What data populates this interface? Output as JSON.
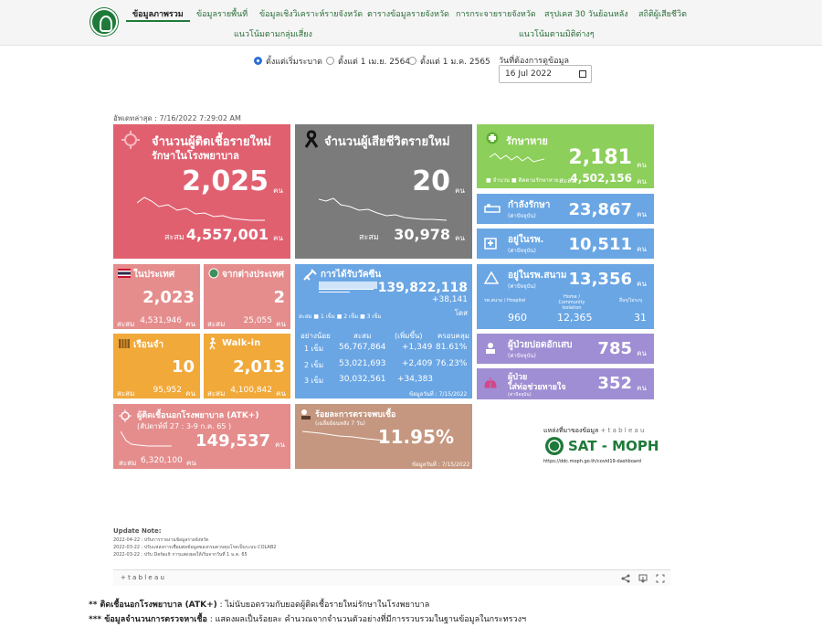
{
  "nav": {
    "items": [
      "ข้อมูลภาพรวม",
      "ข้อมูลรายพื้นที่",
      "ข้อมูลเชิงวิเคราะห์รายจังหวัด",
      "ตารางข้อมูลรายจังหวัด",
      "การกระจายรายจังหวัด",
      "สรุปเคส 30 วันย้อนหลัง",
      "สถิติผู้เสียชีวิต"
    ],
    "row2": [
      "แนวโน้มตามกลุ่มเสี่ยง",
      "แนวโน้มตามมิติต่างๆ"
    ]
  },
  "filters": {
    "opt1": "ตั้งแต่เริ่มระบาด",
    "opt2": "ตั้งแต่ 1 เม.ย. 2564",
    "opt3": "ตั้งแต่ 1 ม.ค. 2565",
    "date_label": "วันที่ต้องการดูข้อมูล",
    "date_value": "16 Jul 2022"
  },
  "updated": "อัพเดทล่าสุด : 7/16/2022 7:29:02 AM",
  "new_cases": {
    "title1": "จำนวนผู้ติดเชื้อรายใหม่",
    "title2": "รักษาในโรงพยาบาล",
    "value": "2,025",
    "unit": "คน",
    "cum_label": "สะสม",
    "cum": "4,557,001",
    "cum_unit": "คน"
  },
  "deaths": {
    "title": "จำนวนผู้เสียชีวิตรายใหม่",
    "value": "20",
    "unit": "คน",
    "cum_label": "สะสม",
    "cum": "30,978",
    "cum_unit": "คน"
  },
  "recovered": {
    "title": "รักษาหาย",
    "value": "2,181",
    "unit": "คน",
    "legend1": "จำนวน",
    "legend2": "ติดตามรักษาหาย",
    "cum_label": "สะสม",
    "cum": "4,502,156",
    "cum_unit": "คน"
  },
  "treating": {
    "title": "กำลังรักษา",
    "sub": "(ค่าปัจจุบัน)",
    "value": "23,867",
    "unit": "คน"
  },
  "in_hosp": {
    "title": "อยู่ในรพ.",
    "sub": "(ค่าปัจจุบัน)",
    "value": "10,511",
    "unit": "คน"
  },
  "field_hosp": {
    "title": "อยู่ในรพ.สนาม",
    "sub": "(ค่าปัจจุบัน)",
    "value": "13,356",
    "unit": "คน",
    "c1": "รพ.สนาม / Hospitel",
    "c2": "Home / Community Isolation",
    "c3": "อื่นๆ/ไม่ระบุ",
    "v1": "960",
    "v2": "12,365",
    "v3": "31"
  },
  "lung": {
    "title": "ผู้ป่วยปอดอักเสบ",
    "sub": "(ค่าปัจจุบัน)",
    "value": "785",
    "unit": "คน"
  },
  "ventilator": {
    "title1": "ผู้ป่วย",
    "title2": "ใส่ท่อช่วยหายใจ",
    "sub": "(ค่าปัจจุบัน)",
    "value": "352",
    "unit": "คน"
  },
  "domestic": {
    "title": "ในประเทศ",
    "value": "2,023",
    "cum_label": "สะสม",
    "cum": "4,531,946",
    "unit": "คน"
  },
  "abroad": {
    "title": "จากต่างประเทศ",
    "value": "2",
    "cum_label": "สะสม",
    "cum": "25,055",
    "unit": "คน"
  },
  "prison": {
    "title": "เรือนจำ",
    "value": "10",
    "cum_label": "สะสม",
    "cum": "95,952",
    "unit": "คน"
  },
  "walkin": {
    "title": "Walk-in",
    "value": "2,013",
    "cum_label": "สะสม",
    "cum": "4,100,842",
    "unit": "คน"
  },
  "vaccine": {
    "title": "การได้รับวัคซีน",
    "total": "139,822,118",
    "delta": "+38,141",
    "dose_unit": "โดส",
    "legend": [
      "1 เข็ม",
      "2 เข็ม",
      "3 เข็ม"
    ],
    "legend_prefix": "สะสม",
    "headers": [
      "อย่างน้อย",
      "สะสม",
      "(เพิ่มขึ้น)",
      "ครอบคลุม"
    ],
    "rows": [
      [
        "1 เข็ม",
        "56,767,864",
        "+1,349",
        "81.61%"
      ],
      [
        "2 เข็ม",
        "53,021,693",
        "+2,409",
        "76.23%"
      ],
      [
        "3 เข็ม",
        "30,032,561",
        "+34,383",
        ""
      ]
    ],
    "date": "ข้อมูลวันที่ : 7/15/2022"
  },
  "atk": {
    "title": "ผู้ติดเชื้อนอกโรงพยาบาล (ATK+)",
    "week": "(สัปดาห์ที่ 27 : 3-9 ก.ค. 65 )",
    "value": "149,537",
    "unit": "คน",
    "cum_label": "สะสม",
    "cum": "6,320,100",
    "cum_unit": "คน"
  },
  "positive": {
    "title": "ร้อยละการตรวจพบเชื้อ",
    "sub": "(เฉลี่ยย้อนหลัง 7 วัน)",
    "value": "11.95%",
    "date": "ข้อมูลวันที่ : 7/15/2022"
  },
  "source": {
    "label": "แหล่งที่มาของข้อมูล",
    "tableau": "+ t a b l e a u",
    "brand": "SAT - MOPH",
    "url": "https://ddc.moph.go.th/covid19-dashboard"
  },
  "update_note": {
    "title": "Update Note:",
    "lines": [
      "2022-04-22 : ปรับการรายงานข้อมูลรายจังหวัด",
      "2022-03-22 : ปรับแหล่งการเชื่อมต่อข้อมูลของกรมควบคุมโรคเป็นระบบ COLAB2",
      "2022-03-22 : ปรับ Default การแสดงผลให้เริ่มจากวันที่ 1 ม.ค. 65"
    ]
  },
  "tableau_bar": "+ t a b l e a u",
  "notes": [
    {
      "prefix": "** ติดเชื้อนอกโรงพยาบาล (ATK+)",
      "text": " : ไม่นับยอดรวมกับยอดผู้ติดเชื้อรายใหม่รักษาในโรงพยาบาล"
    },
    {
      "prefix": "*** ข้อมูลจำนวนการตรวจหาเชื้อ",
      "text": " : แสดงผลเป็นร้อยละ คำนวณจากจำนวนตัวอย่างที่มีการรวบรวมในฐานข้อมูลในกระทรวงฯ"
    }
  ],
  "colors": {
    "red": "#e06070",
    "gray": "#7b7b7b",
    "green": "#8ccf5a",
    "blue": "#6aa6e4",
    "purple": "#9f8ed3"
  }
}
